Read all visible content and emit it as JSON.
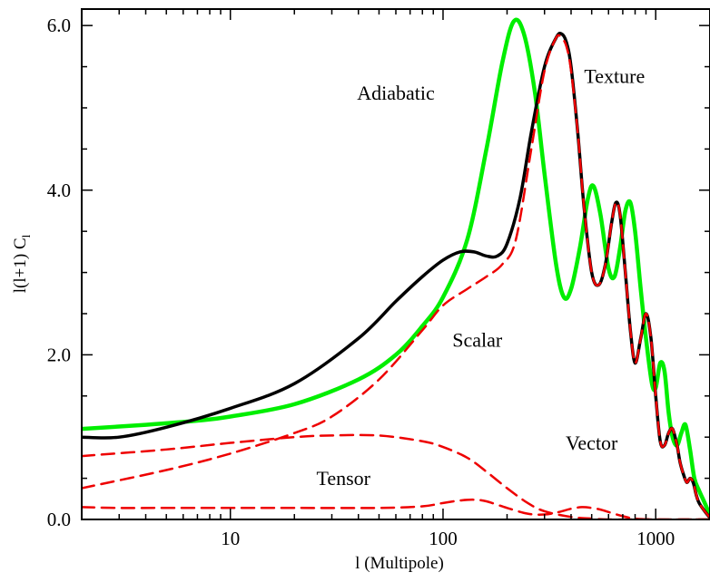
{
  "chart_data": {
    "type": "line",
    "title": "",
    "xlabel": "l (Multipole)",
    "ylabel": "l(l+1) C",
    "ylabel_subscript": "l",
    "xscale": "log",
    "xlim": [
      2,
      1800
    ],
    "ylim": [
      0,
      6.2
    ],
    "grid": false,
    "x_ticks": [
      {
        "value": 10,
        "label": "10"
      },
      {
        "value": 100,
        "label": "100"
      },
      {
        "value": 1000,
        "label": "1000"
      }
    ],
    "y_ticks": [
      {
        "value": 0,
        "label": "0.0"
      },
      {
        "value": 2,
        "label": "2.0"
      },
      {
        "value": 4,
        "label": "4.0"
      },
      {
        "value": 6,
        "label": "6.0"
      }
    ],
    "series": [
      {
        "name": "Adiabatic",
        "color": "#00ee00",
        "style": "solid",
        "width": 4.5,
        "x": [
          2,
          4,
          7,
          10,
          20,
          40,
          60,
          80,
          100,
          130,
          160,
          190,
          215,
          240,
          270,
          300,
          340,
          370,
          400,
          440,
          480,
          510,
          550,
          600,
          640,
          680,
          720,
          760,
          800,
          850,
          900,
          960,
          1000,
          1050,
          1100,
          1150,
          1200,
          1260,
          1320,
          1380,
          1450,
          1520,
          1600,
          1700,
          1800
        ],
        "y": [
          1.1,
          1.15,
          1.2,
          1.25,
          1.4,
          1.7,
          2.0,
          2.35,
          2.7,
          3.4,
          4.5,
          5.55,
          6.05,
          5.9,
          5.2,
          4.2,
          3.1,
          2.7,
          2.8,
          3.3,
          3.9,
          4.05,
          3.7,
          3.05,
          2.95,
          3.3,
          3.75,
          3.85,
          3.5,
          2.8,
          2.2,
          1.65,
          1.6,
          1.9,
          1.8,
          1.3,
          1.0,
          0.9,
          1.05,
          1.15,
          0.85,
          0.5,
          0.35,
          0.2,
          0.05
        ]
      },
      {
        "name": "Texture",
        "color": "#000000",
        "style": "solid",
        "width": 3.5,
        "x": [
          2,
          3,
          5,
          10,
          20,
          40,
          60,
          80,
          100,
          120,
          140,
          160,
          180,
          200,
          230,
          260,
          300,
          340,
          360,
          380,
          400,
          430,
          460,
          500,
          540,
          580,
          620,
          650,
          680,
          720,
          760,
          800,
          850,
          900,
          950,
          1000,
          1050,
          1100,
          1150,
          1200,
          1260,
          1300,
          1350,
          1400,
          1450,
          1500,
          1550,
          1600,
          1700,
          1800
        ],
        "y": [
          1.0,
          1.0,
          1.12,
          1.35,
          1.65,
          2.2,
          2.65,
          2.95,
          3.15,
          3.25,
          3.25,
          3.2,
          3.2,
          3.35,
          3.9,
          4.7,
          5.5,
          5.85,
          5.9,
          5.8,
          5.5,
          4.7,
          3.8,
          3.0,
          2.85,
          3.1,
          3.6,
          3.85,
          3.7,
          3.0,
          2.3,
          1.9,
          2.2,
          2.5,
          2.2,
          1.5,
          0.95,
          0.9,
          1.05,
          1.1,
          0.9,
          0.7,
          0.55,
          0.45,
          0.5,
          0.45,
          0.3,
          0.2,
          0.1,
          0.02
        ]
      },
      {
        "name": "Scalar",
        "color": "#ee0000",
        "style": "dashed",
        "width": 2.5,
        "x": [
          2,
          5,
          10,
          20,
          30,
          50,
          80,
          100,
          130,
          160,
          190,
          220,
          260,
          300,
          340,
          360,
          380,
          400,
          430,
          460,
          500,
          540,
          580,
          620,
          650,
          680,
          720,
          760,
          800,
          850,
          900,
          950,
          1000,
          1050,
          1100,
          1150,
          1200,
          1260,
          1300,
          1350,
          1400,
          1450,
          1500,
          1550,
          1600,
          1700,
          1800
        ],
        "y": [
          0.38,
          0.6,
          0.8,
          1.05,
          1.25,
          1.7,
          2.3,
          2.6,
          2.8,
          2.95,
          3.1,
          3.4,
          4.5,
          5.45,
          5.85,
          5.85,
          5.75,
          5.45,
          4.7,
          3.8,
          3.0,
          2.85,
          3.1,
          3.6,
          3.85,
          3.7,
          3.0,
          2.3,
          1.9,
          2.2,
          2.5,
          2.2,
          1.5,
          0.95,
          0.9,
          1.05,
          1.1,
          0.9,
          0.7,
          0.55,
          0.45,
          0.5,
          0.45,
          0.3,
          0.2,
          0.1,
          0.02
        ]
      },
      {
        "name": "Vector",
        "color": "#ee0000",
        "style": "dashed",
        "width": 2.5,
        "x": [
          2,
          5,
          10,
          20,
          30,
          50,
          80,
          100,
          130,
          160,
          200,
          250,
          300,
          400,
          500,
          600,
          800,
          1000,
          1800
        ],
        "y": [
          0.77,
          0.85,
          0.93,
          1.0,
          1.02,
          1.02,
          0.95,
          0.88,
          0.75,
          0.58,
          0.38,
          0.2,
          0.1,
          0.03,
          0.01,
          0.0,
          0.0,
          0.0,
          0.0
        ]
      },
      {
        "name": "Tensor",
        "color": "#ee0000",
        "style": "dashed",
        "width": 2.5,
        "x": [
          2,
          3,
          5,
          10,
          20,
          50,
          80,
          100,
          120,
          140,
          160,
          200,
          250,
          300,
          350,
          400,
          450,
          500,
          550,
          600,
          700,
          800,
          1000,
          1800
        ],
        "y": [
          0.15,
          0.14,
          0.14,
          0.14,
          0.14,
          0.14,
          0.16,
          0.2,
          0.23,
          0.24,
          0.22,
          0.14,
          0.07,
          0.06,
          0.09,
          0.13,
          0.15,
          0.14,
          0.12,
          0.09,
          0.04,
          0.01,
          0.0,
          0.0
        ]
      }
    ],
    "annotations": [
      {
        "text": "Adiabatic",
        "x": 60,
        "y": 5.1
      },
      {
        "text": "Texture",
        "x": 640,
        "y": 5.3
      },
      {
        "text": "Scalar",
        "x": 145,
        "y": 2.1
      },
      {
        "text": "Vector",
        "x": 500,
        "y": 0.85
      },
      {
        "text": "Tensor",
        "x": 34,
        "y": 0.42
      }
    ]
  }
}
